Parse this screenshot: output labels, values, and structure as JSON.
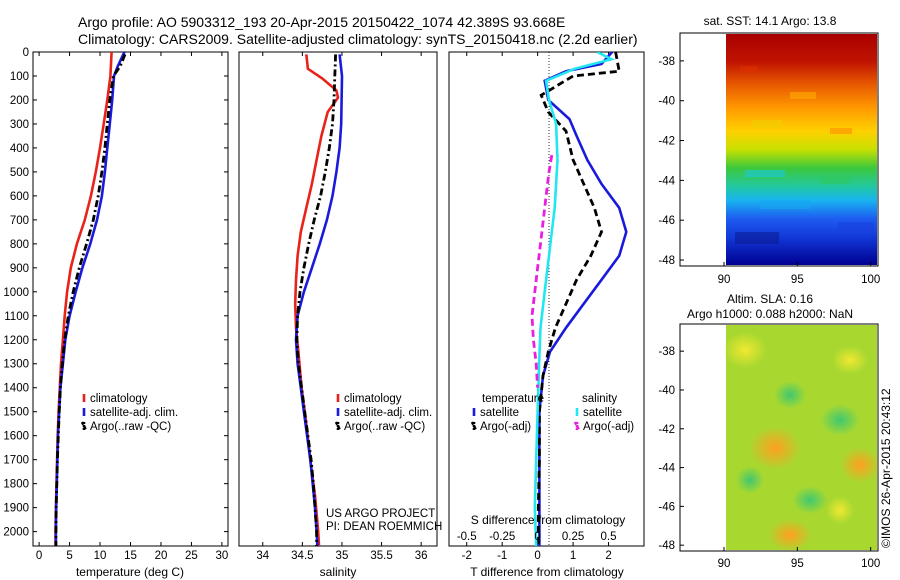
{
  "header": {
    "line1": "Argo profile: AO 5903312_193 20-Apr-2015 20150422_1074 42.389S 93.668E",
    "line2": "Climatology: CARS2009. Satellite-adjusted climatology: synTS_20150418.nc (2.2d earlier)"
  },
  "colors": {
    "climatology": "#e8231a",
    "satellite": "#1a1adc",
    "argo": "#000000",
    "salinity_satellite": "#22e6f0",
    "salinity_argo": "#e81ee0"
  },
  "depth_axis": {
    "ticks": [
      0,
      100,
      200,
      300,
      400,
      500,
      600,
      700,
      800,
      900,
      1000,
      1100,
      1200,
      1300,
      1400,
      1500,
      1600,
      1700,
      1800,
      1900,
      2000
    ],
    "range": [
      0,
      2060
    ]
  },
  "chart_data": [
    {
      "type": "line",
      "panel": "temperature",
      "xlabel": "temperature (deg C)",
      "xlim": [
        -1,
        31
      ],
      "xticks": [
        0,
        5,
        10,
        15,
        20,
        25,
        30
      ],
      "legend": [
        "climatology",
        "satellite-adj. clim.",
        "Argo(..raw -QC)"
      ],
      "legend_position": "bottom-right",
      "series": [
        {
          "name": "climatology",
          "style": "solid",
          "color_key": "climatology",
          "points": [
            [
              11.9,
              0
            ],
            [
              11.7,
              100
            ],
            [
              11.2,
              200
            ],
            [
              10.6,
              300
            ],
            [
              10.0,
              400
            ],
            [
              9.3,
              500
            ],
            [
              8.5,
              600
            ],
            [
              7.5,
              700
            ],
            [
              6.2,
              800
            ],
            [
              5.2,
              900
            ],
            [
              4.6,
              1000
            ],
            [
              4.2,
              1100
            ],
            [
              3.9,
              1200
            ],
            [
              3.6,
              1300
            ],
            [
              3.4,
              1400
            ],
            [
              3.2,
              1500
            ],
            [
              3.05,
              1600
            ],
            [
              2.95,
              1700
            ],
            [
              2.85,
              1800
            ],
            [
              2.75,
              1900
            ],
            [
              2.7,
              2000
            ],
            [
              2.7,
              2060
            ]
          ]
        },
        {
          "name": "satellite-adj. clim.",
          "style": "solid",
          "color_key": "satellite",
          "points": [
            [
              14.0,
              0
            ],
            [
              12.9,
              60
            ],
            [
              12.3,
              100
            ],
            [
              12.0,
              200
            ],
            [
              11.6,
              300
            ],
            [
              11.2,
              400
            ],
            [
              10.8,
              500
            ],
            [
              10.3,
              600
            ],
            [
              9.5,
              700
            ],
            [
              8.4,
              800
            ],
            [
              7.1,
              900
            ],
            [
              6.0,
              1000
            ],
            [
              5.0,
              1100
            ],
            [
              4.3,
              1200
            ],
            [
              3.9,
              1300
            ],
            [
              3.5,
              1400
            ],
            [
              3.3,
              1500
            ],
            [
              3.1,
              1600
            ],
            [
              3.0,
              1700
            ],
            [
              2.9,
              1800
            ],
            [
              2.8,
              1900
            ],
            [
              2.75,
              2000
            ],
            [
              2.75,
              2060
            ]
          ]
        },
        {
          "name": "Argo(..raw -QC)",
          "style": "dashdot",
          "color_key": "argo",
          "points": [
            [
              14.1,
              10
            ],
            [
              13.3,
              60
            ],
            [
              12.2,
              100
            ],
            [
              11.6,
              200
            ],
            [
              11.2,
              300
            ],
            [
              10.8,
              400
            ],
            [
              10.3,
              500
            ],
            [
              9.7,
              600
            ],
            [
              8.9,
              700
            ],
            [
              7.8,
              800
            ],
            [
              6.6,
              900
            ],
            [
              5.6,
              1000
            ],
            [
              4.8,
              1100
            ],
            [
              4.2,
              1200
            ],
            [
              3.8,
              1300
            ],
            [
              3.5,
              1400
            ],
            [
              3.3,
              1500
            ],
            [
              3.15,
              1600
            ],
            [
              3.0,
              1700
            ],
            [
              2.9,
              1800
            ],
            [
              2.8,
              1900
            ],
            [
              2.75,
              2000
            ],
            [
              2.75,
              2060
            ]
          ]
        }
      ]
    },
    {
      "type": "line",
      "panel": "salinity",
      "xlabel": "salinity",
      "xlim": [
        33.7,
        36.2
      ],
      "xticks": [
        34,
        34.5,
        35,
        35.5,
        36
      ],
      "legend": [
        "climatology",
        "satellite-adj. clim.",
        "Argo(..raw -QC)"
      ],
      "legend_position": "bottom-right",
      "series": [
        {
          "name": "climatology",
          "style": "solid",
          "color_key": "climatology",
          "points": [
            [
              34.55,
              10
            ],
            [
              34.57,
              70
            ],
            [
              34.75,
              110
            ],
            [
              34.93,
              160
            ],
            [
              34.95,
              190
            ],
            [
              34.82,
              250
            ],
            [
              34.74,
              350
            ],
            [
              34.68,
              450
            ],
            [
              34.62,
              550
            ],
            [
              34.55,
              650
            ],
            [
              34.48,
              750
            ],
            [
              34.44,
              850
            ],
            [
              34.42,
              950
            ],
            [
              34.41,
              1050
            ],
            [
              34.42,
              1150
            ],
            [
              34.45,
              1250
            ],
            [
              34.49,
              1400
            ],
            [
              34.55,
              1550
            ],
            [
              34.6,
              1700
            ],
            [
              34.66,
              1850
            ],
            [
              34.7,
              2000
            ],
            [
              34.71,
              2060
            ]
          ]
        },
        {
          "name": "satellite-adj. clim.",
          "style": "solid",
          "color_key": "satellite",
          "points": [
            [
              34.97,
              10
            ],
            [
              35.0,
              100
            ],
            [
              34.99,
              300
            ],
            [
              34.97,
              400
            ],
            [
              34.93,
              500
            ],
            [
              34.88,
              600
            ],
            [
              34.81,
              700
            ],
            [
              34.72,
              800
            ],
            [
              34.62,
              900
            ],
            [
              34.52,
              1000
            ],
            [
              34.44,
              1100
            ],
            [
              34.42,
              1200
            ],
            [
              34.44,
              1300
            ],
            [
              34.48,
              1400
            ],
            [
              34.52,
              1500
            ],
            [
              34.56,
              1600
            ],
            [
              34.6,
              1700
            ],
            [
              34.63,
              1800
            ],
            [
              34.66,
              1900
            ],
            [
              34.68,
              2000
            ],
            [
              34.69,
              2060
            ]
          ]
        },
        {
          "name": "Argo(..raw -QC)",
          "style": "dashdot",
          "color_key": "argo",
          "points": [
            [
              34.92,
              10
            ],
            [
              34.91,
              100
            ],
            [
              34.9,
              200
            ],
            [
              34.88,
              300
            ],
            [
              34.84,
              400
            ],
            [
              34.79,
              500
            ],
            [
              34.73,
              600
            ],
            [
              34.65,
              700
            ],
            [
              34.58,
              800
            ],
            [
              34.52,
              900
            ],
            [
              34.47,
              1000
            ],
            [
              34.44,
              1100
            ],
            [
              34.43,
              1200
            ],
            [
              34.45,
              1300
            ],
            [
              34.49,
              1400
            ],
            [
              34.53,
              1500
            ],
            [
              34.57,
              1600
            ],
            [
              34.61,
              1700
            ],
            [
              34.64,
              1800
            ],
            [
              34.66,
              1900
            ],
            [
              34.68,
              2000
            ],
            [
              34.68,
              2060
            ]
          ]
        }
      ]
    },
    {
      "type": "line",
      "panel": "differences",
      "xlabel": "T difference from climatology",
      "xlim": [
        -2.5,
        3.0
      ],
      "xticks": [
        -2,
        -1,
        0,
        1,
        2
      ],
      "s_xlabel": "S difference from climatology",
      "s_xlim": [
        -0.625,
        0.75
      ],
      "s_xticks": [
        -0.5,
        -0.25,
        0,
        0.25,
        0.5
      ],
      "legend_groups": [
        "temperature",
        "salinity"
      ],
      "legend": [
        "satellite",
        "Argo(-adj)",
        "satellite",
        "Argo(-adj)"
      ],
      "legend_position": "bottom",
      "series": [
        {
          "name": "temperature satellite",
          "variable": "temperature",
          "style": "solid",
          "color_key": "satellite",
          "points": [
            [
              2.1,
              0
            ],
            [
              1.8,
              50
            ],
            [
              0.8,
              80
            ],
            [
              0.2,
              120
            ],
            [
              0.3,
              200
            ],
            [
              0.9,
              280
            ],
            [
              1.1,
              350
            ],
            [
              1.4,
              450
            ],
            [
              1.8,
              550
            ],
            [
              2.3,
              650
            ],
            [
              2.5,
              750
            ],
            [
              2.3,
              850
            ],
            [
              1.8,
              950
            ],
            [
              1.3,
              1050
            ],
            [
              0.8,
              1150
            ],
            [
              0.35,
              1250
            ],
            [
              0.15,
              1350
            ],
            [
              0.05,
              1500
            ],
            [
              0.05,
              1700
            ],
            [
              0.05,
              1900
            ],
            [
              0.05,
              2060
            ]
          ]
        },
        {
          "name": "temperature Argo(-adj)",
          "variable": "temperature",
          "style": "dashed",
          "color_key": "argo",
          "points": [
            [
              2.2,
              0
            ],
            [
              2.3,
              80
            ],
            [
              1.0,
              100
            ],
            [
              0.1,
              180
            ],
            [
              0.3,
              250
            ],
            [
              0.8,
              330
            ],
            [
              1.0,
              450
            ],
            [
              1.3,
              550
            ],
            [
              1.6,
              650
            ],
            [
              1.8,
              750
            ],
            [
              1.5,
              850
            ],
            [
              1.1,
              950
            ],
            [
              0.8,
              1050
            ],
            [
              0.5,
              1150
            ],
            [
              0.3,
              1250
            ],
            [
              0.15,
              1350
            ],
            [
              0.05,
              1500
            ],
            [
              0.05,
              1700
            ],
            [
              0.02,
              1900
            ],
            [
              0.02,
              2060
            ]
          ]
        }
      ],
      "salinity_series": [
        {
          "name": "salinity satellite",
          "variable": "salinity",
          "style": "solid",
          "color_key": "salinity_satellite",
          "points": [
            [
              0.42,
              0
            ],
            [
              0.52,
              30
            ],
            [
              0.26,
              70
            ],
            [
              0.06,
              120
            ],
            [
              0.08,
              200
            ],
            [
              0.13,
              300
            ],
            [
              0.14,
              450
            ],
            [
              0.13,
              550
            ],
            [
              0.12,
              650
            ],
            [
              0.1,
              750
            ],
            [
              0.08,
              850
            ],
            [
              0.06,
              950
            ],
            [
              0.04,
              1050
            ],
            [
              0.02,
              1150
            ],
            [
              0.01,
              1300
            ],
            [
              0.0,
              1500
            ],
            [
              -0.01,
              1700
            ],
            [
              -0.02,
              1900
            ],
            [
              -0.01,
              2060
            ]
          ]
        },
        {
          "name": "salinity Argo(-adj)",
          "variable": "salinity",
          "style": "dashed",
          "color_key": "salinity_argo",
          "points": [
            [
              0.1,
              430
            ],
            [
              0.08,
              500
            ],
            [
              0.06,
              600
            ],
            [
              0.04,
              700
            ],
            [
              0.02,
              800
            ],
            [
              0.0,
              900
            ],
            [
              -0.02,
              1000
            ],
            [
              -0.04,
              1100
            ],
            [
              -0.03,
              1200
            ],
            [
              -0.01,
              1300
            ],
            [
              0.0,
              1400
            ]
          ]
        }
      ]
    }
  ],
  "credits": {
    "line1": "US ARGO PROJECT",
    "line2": "PI: DEAN ROEMMICH"
  },
  "map_sst": {
    "title": "sat. SST: 14.1  Argo: 13.8",
    "xticks": [
      90,
      95,
      100
    ],
    "yticks": [
      -38,
      -40,
      -42,
      -44,
      -46,
      -48
    ]
  },
  "map_sla": {
    "title1": "Altim. SLA: 0.16",
    "title2": "Argo h1000: 0.088 h2000: NaN",
    "xticks": [
      90,
      95,
      100
    ],
    "yticks": [
      -38,
      -40,
      -42,
      -44,
      -46,
      -48
    ]
  },
  "watermark": "©IMOS 26-Apr-2015 20:43:12"
}
